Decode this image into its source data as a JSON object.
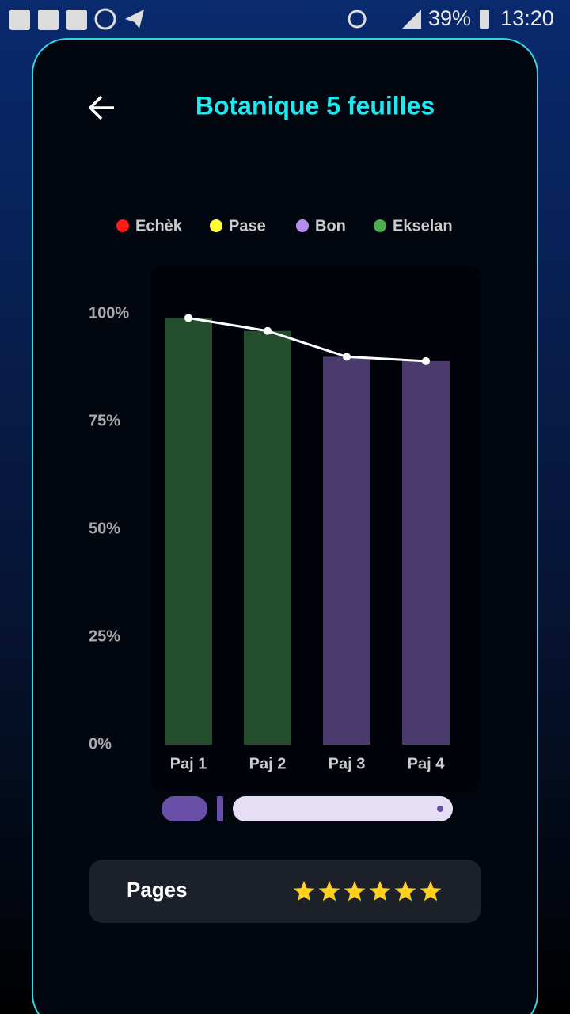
{
  "status_bar": {
    "battery": "39%",
    "time": "13:20"
  },
  "header": {
    "title": "Botanique 5 feuilles"
  },
  "chart_data": {
    "type": "bar",
    "categories": [
      "Paj 1",
      "Paj 2",
      "Paj 3",
      "Paj 4"
    ],
    "values": [
      99,
      96,
      90,
      89
    ],
    "colors": [
      "#234d2c",
      "#234d2c",
      "#4a3a6e",
      "#4a3a6e"
    ],
    "line_color": "#ffffff",
    "legend": [
      {
        "name": "Echèk",
        "color": "#ff1a1a"
      },
      {
        "name": "Pase",
        "color": "#ffff33"
      },
      {
        "name": "Bon",
        "color": "#b98cf0"
      },
      {
        "name": "Ekselan",
        "color": "#4caf50"
      }
    ],
    "ylim": [
      0,
      100
    ],
    "yticks": [
      {
        "value": 0,
        "label": "0%"
      },
      {
        "value": 25,
        "label": "25%"
      },
      {
        "value": 50,
        "label": "50%"
      },
      {
        "value": 75,
        "label": "75%"
      },
      {
        "value": 100,
        "label": "100%"
      }
    ],
    "grid": false
  },
  "footer": {
    "label": "Pages",
    "rating": 6
  }
}
